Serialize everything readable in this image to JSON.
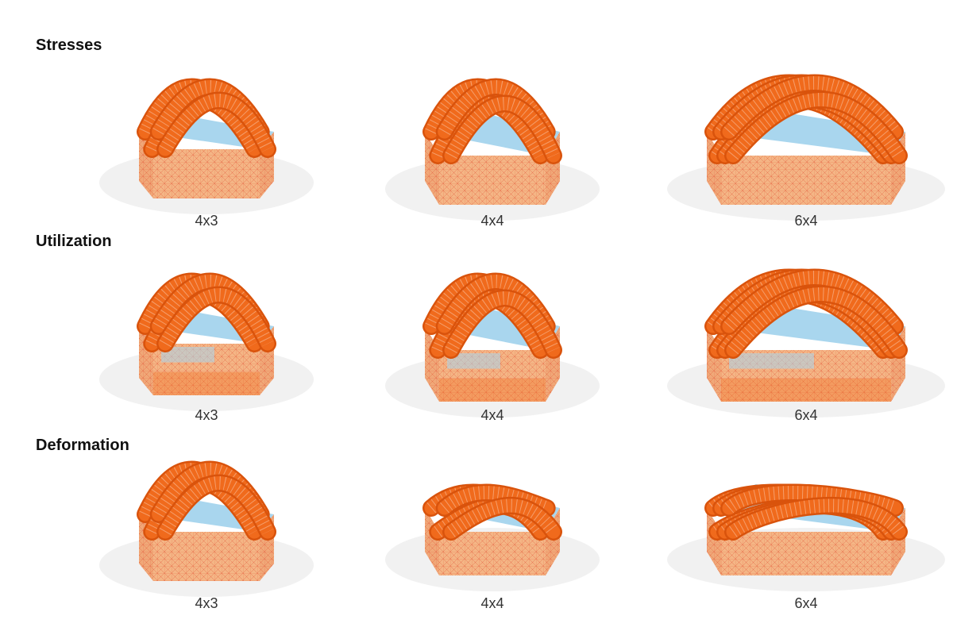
{
  "sections": [
    {
      "title": "Stresses",
      "variant": "stress",
      "models": [
        {
          "label": "4x3",
          "cols": 4,
          "rows": 3,
          "arches": 4
        },
        {
          "label": "4x4",
          "cols": 4,
          "rows": 4,
          "arches": 4
        },
        {
          "label": "6x4",
          "cols": 6,
          "rows": 4,
          "arches": 6
        }
      ]
    },
    {
      "title": "Utilization",
      "variant": "utilization",
      "models": [
        {
          "label": "4x3",
          "cols": 4,
          "rows": 3,
          "arches": 4
        },
        {
          "label": "4x4",
          "cols": 4,
          "rows": 4,
          "arches": 4
        },
        {
          "label": "6x4",
          "cols": 6,
          "rows": 4,
          "arches": 6
        }
      ]
    },
    {
      "title": "Deformation",
      "variant": "deformation",
      "models": [
        {
          "label": "4x3",
          "cols": 4,
          "rows": 3,
          "arches": 4
        },
        {
          "label": "4x4",
          "cols": 4,
          "rows": 4,
          "arches": 4
        },
        {
          "label": "6x4",
          "cols": 6,
          "rows": 4,
          "arches": 6
        }
      ]
    }
  ],
  "colors": {
    "arch": "#f06a1c",
    "arch_dark": "#d9530c",
    "mesh_line": "#e0452a",
    "box_side": "#f0a878",
    "box_front": "#f4b585",
    "box_top": "#a9d6ee",
    "highlight": "#a9d6ee",
    "shadow": "#e6e6e6"
  }
}
